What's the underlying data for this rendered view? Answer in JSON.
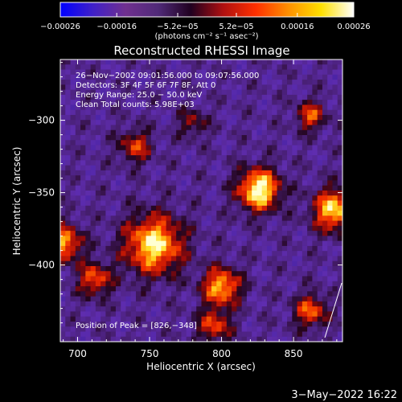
{
  "chart_data": {
    "type": "heatmap",
    "title": "Reconstructed RHESSI Image",
    "xlabel": "Heliocentric X (arcsec)",
    "ylabel": "Heliocentric Y (arcsec)",
    "xlim": [
      688,
      884
    ],
    "ylim": [
      -453,
      -258
    ],
    "x_ticks": [
      {
        "value": 700,
        "label": "700"
      },
      {
        "value": 750,
        "label": "750"
      },
      {
        "value": 800,
        "label": "800"
      },
      {
        "value": 850,
        "label": "850"
      }
    ],
    "y_ticks": [
      {
        "value": -300,
        "label": "−300"
      },
      {
        "value": -350,
        "label": "−350"
      },
      {
        "value": -400,
        "label": "−400"
      }
    ],
    "colorbar": {
      "range": [
        -0.00026,
        0.00026
      ],
      "unit_label": "(photons cm⁻² s⁻¹ asec⁻²)",
      "ticks": [
        {
          "value": -0.00026,
          "label": "−0.00026"
        },
        {
          "value": -0.00016,
          "label": "−0.00016"
        },
        {
          "value": -5.2e-05,
          "label": "−5.2e−05"
        },
        {
          "value": 5.2e-05,
          "label": "5.2e−05"
        },
        {
          "value": 0.00016,
          "label": "0.00016"
        },
        {
          "value": 0.00026,
          "label": "0.00026"
        }
      ],
      "colors": [
        "#0000ff",
        "#4020c8",
        "#703090",
        "#502a78",
        "#200020",
        "#b01010",
        "#ff3000",
        "#ff9000",
        "#ffe000",
        "#ffffff"
      ]
    },
    "info_lines": [
      "26−Nov−2002 09:01:56.000 to 09:07:56.000",
      "Detectors: 3F 4F 5F 6F 7F 8F, Att 0",
      "Energy Range: 25.0 − 50.0 keV",
      "Clean     Total counts: 5.98E+03"
    ],
    "peak_label": "Position of Peak = [826,−348]",
    "peak": {
      "x": 826,
      "y": -348
    },
    "hotspots": [
      {
        "x": 826,
        "y": -348,
        "intensity": 1.0,
        "sigma": 10
      },
      {
        "x": 753,
        "y": -386,
        "intensity": 0.9,
        "sigma": 14
      },
      {
        "x": 690,
        "y": -385,
        "intensity": 0.75,
        "sigma": 9
      },
      {
        "x": 878,
        "y": -362,
        "intensity": 0.85,
        "sigma": 10
      },
      {
        "x": 800,
        "y": -415,
        "intensity": 0.8,
        "sigma": 9
      },
      {
        "x": 795,
        "y": -442,
        "intensity": 0.55,
        "sigma": 8
      },
      {
        "x": 862,
        "y": -432,
        "intensity": 0.6,
        "sigma": 8
      },
      {
        "x": 712,
        "y": -410,
        "intensity": 0.6,
        "sigma": 8
      },
      {
        "x": 740,
        "y": -318,
        "intensity": 0.5,
        "sigma": 8
      },
      {
        "x": 862,
        "y": -297,
        "intensity": 0.55,
        "sigma": 7
      },
      {
        "x": 780,
        "y": -302,
        "intensity": 0.35,
        "sigma": 7
      }
    ],
    "timestamp": "3−May−2022 16:22"
  }
}
